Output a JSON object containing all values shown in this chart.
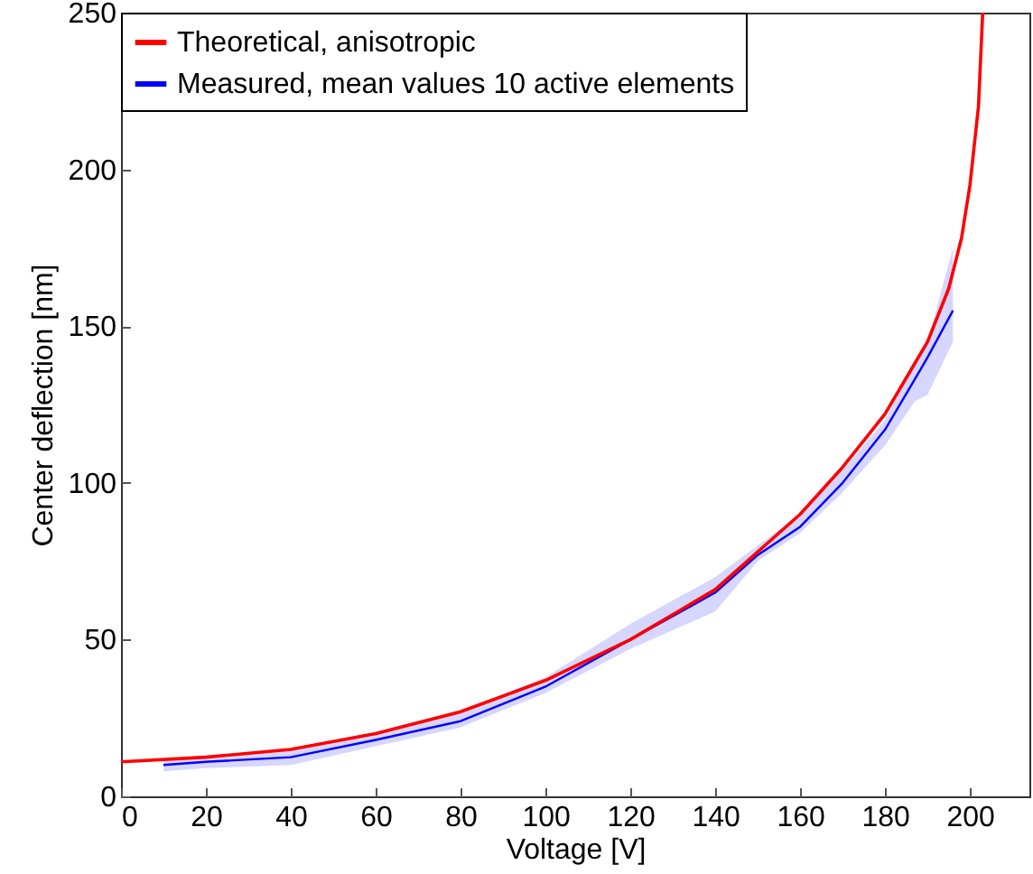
{
  "chart_data": {
    "type": "line",
    "xlabel": "Voltage [V]",
    "ylabel": "Center deflection [nm]",
    "xlim": [
      0,
      214
    ],
    "ylim": [
      0,
      250
    ],
    "xticks": [
      0,
      20,
      40,
      60,
      80,
      100,
      120,
      140,
      160,
      180,
      200
    ],
    "yticks": [
      0,
      50,
      100,
      150,
      200,
      250
    ],
    "legend": "top left",
    "grid": false,
    "series": [
      {
        "name": "Theoretical, anisotropic",
        "color": "#ff0000",
        "x": [
          0,
          20,
          40,
          60,
          80,
          100,
          120,
          140,
          160,
          170,
          180,
          190,
          195,
          198,
          200,
          202,
          203
        ],
        "values": [
          11,
          12.5,
          15,
          20,
          27,
          37,
          50,
          66,
          90,
          105,
          122,
          145,
          162,
          178,
          195,
          220,
          250
        ]
      },
      {
        "name": "Measured, mean values 10 active elements",
        "color": "#0000ff",
        "x": [
          10,
          20,
          40,
          60,
          80,
          100,
          120,
          140,
          150,
          160,
          170,
          180,
          187,
          190,
          196
        ],
        "values": [
          10,
          11,
          12.5,
          18,
          24,
          35,
          50,
          65,
          77,
          86,
          100,
          117,
          133,
          140,
          155
        ],
        "lower": [
          8,
          9,
          10,
          16,
          22,
          33,
          47,
          59,
          75,
          84,
          97,
          112,
          126,
          128,
          145
        ],
        "upper": [
          12,
          13,
          15,
          20,
          27,
          38,
          55,
          70,
          80,
          90,
          104,
          120,
          138,
          145,
          175
        ]
      }
    ]
  }
}
